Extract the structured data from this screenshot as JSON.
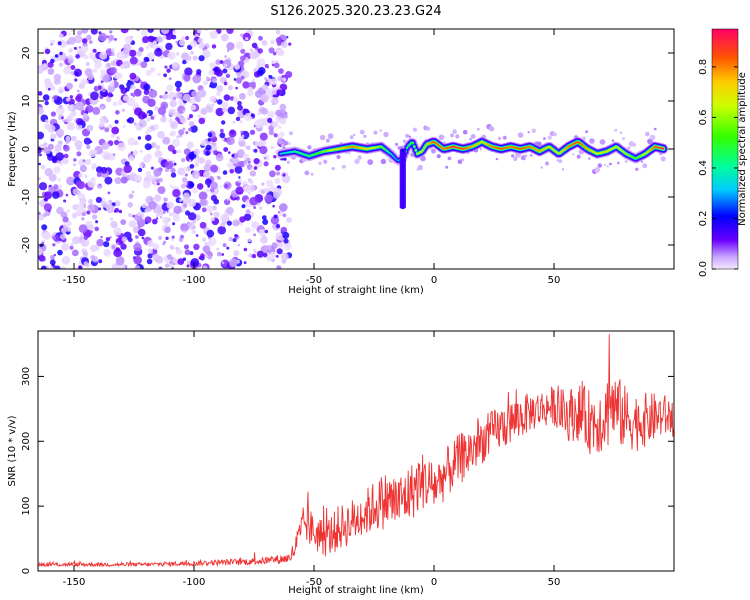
{
  "title": "S126.2025.320.23.23.G24",
  "chart_data": [
    {
      "type": "heatmap",
      "name": "spectrogram",
      "xlabel": "Height of straight line (km)",
      "ylabel": "Frequency (Hz)",
      "xlim": [
        -165,
        100
      ],
      "ylim": [
        -25,
        25
      ],
      "xticks": [
        -150,
        -100,
        -50,
        0,
        50
      ],
      "yticks": [
        -20,
        -10,
        0,
        10,
        20
      ],
      "noise_region": [
        -165,
        -62
      ],
      "ridge": {
        "x": [
          -64,
          -58,
          -52,
          -46,
          -40,
          -34,
          -28,
          -22,
          -18,
          -15,
          -13,
          -11,
          -9,
          -7,
          -5,
          -3,
          0,
          4,
          8,
          12,
          16,
          20,
          24,
          28,
          32,
          36,
          40,
          44,
          48,
          52,
          56,
          60,
          64,
          68,
          72,
          76,
          80,
          84,
          88,
          92,
          96
        ],
        "freq": [
          -1,
          -0.5,
          -1.5,
          -0.5,
          0,
          0.5,
          0,
          0.5,
          -1,
          -2.5,
          -2,
          0.5,
          1.5,
          -1,
          -0.5,
          1,
          1.5,
          0,
          0.5,
          0,
          0.5,
          1.5,
          0.5,
          0,
          0.5,
          0,
          0.5,
          -0.5,
          0.5,
          -1,
          0.5,
          1.5,
          0,
          -1,
          -0.5,
          0.5,
          -1,
          -2,
          -1,
          0.5,
          0
        ],
        "amplitude": [
          0.35,
          0.45,
          0.5,
          0.6,
          0.75,
          0.85,
          0.75,
          0.6,
          0.4,
          0.3,
          0.45,
          0.5,
          0.55,
          0.65,
          0.7,
          0.75,
          0.9,
          0.85,
          0.95,
          0.9,
          0.8,
          0.75,
          0.85,
          0.9,
          0.85,
          0.9,
          0.85,
          0.8,
          0.75,
          0.7,
          0.85,
          0.9,
          0.8,
          0.7,
          0.75,
          0.7,
          0.65,
          0.55,
          0.7,
          0.9,
          0.95
        ]
      },
      "spike": {
        "x": -13,
        "freq_min": -12,
        "freq_max": 0
      },
      "colorbar": {
        "label": "Normalized spectral amplitude",
        "min": 0.0,
        "max": 0.95,
        "ticks": [
          0.0,
          0.2,
          0.4,
          0.6,
          0.8
        ]
      }
    },
    {
      "type": "line",
      "name": "snr",
      "xlabel": "Height of straight line (km)",
      "ylabel": "SNR (10 * v/v)",
      "xlim": [
        -165,
        100
      ],
      "ylim": [
        0,
        370
      ],
      "xticks": [
        -150,
        -100,
        -50,
        0,
        50
      ],
      "yticks": [
        0,
        100,
        200,
        300
      ],
      "color": "#ee3333",
      "series": [
        {
          "name": "SNR",
          "x": [
            -165,
            -120,
            -80,
            -70,
            -60,
            -56,
            -54,
            -50,
            -45,
            -40,
            -35,
            -30,
            -25,
            -20,
            -15,
            -10,
            -5,
            0,
            5,
            10,
            15,
            20,
            25,
            30,
            35,
            40,
            45,
            50,
            55,
            60,
            65,
            70,
            74,
            80,
            85,
            90,
            95,
            100
          ],
          "values": [
            10,
            10,
            14,
            16,
            20,
            50,
            75,
            60,
            50,
            65,
            75,
            85,
            100,
            110,
            105,
            120,
            140,
            130,
            150,
            170,
            185,
            200,
            215,
            225,
            235,
            245,
            250,
            255,
            240,
            245,
            230,
            235,
            255,
            235,
            230,
            235,
            240,
            235
          ],
          "noise_amplitude": [
            3,
            3,
            5,
            6,
            8,
            30,
            30,
            30,
            30,
            35,
            35,
            35,
            40,
            45,
            45,
            45,
            45,
            40,
            40,
            40,
            40,
            35,
            35,
            35,
            35,
            30,
            30,
            30,
            40,
            45,
            50,
            55,
            60,
            50,
            45,
            40,
            35,
            30
          ],
          "peak": {
            "x": 73,
            "value": 365
          }
        }
      ]
    }
  ]
}
